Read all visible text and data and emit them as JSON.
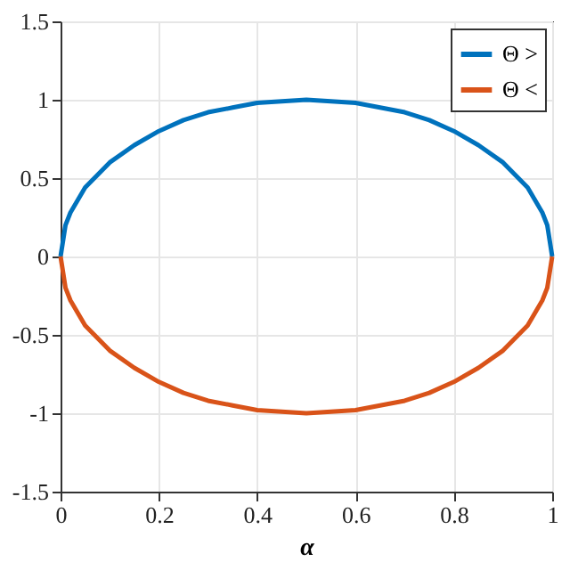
{
  "chart_data": {
    "type": "line",
    "xlabel": "α",
    "x": [
      0,
      0.01,
      0.02,
      0.05,
      0.1,
      0.15,
      0.2,
      0.25,
      0.3,
      0.35,
      0.4,
      0.45,
      0.5,
      0.55,
      0.6,
      0.65,
      0.7,
      0.75,
      0.8,
      0.85,
      0.9,
      0.95,
      0.98,
      0.99,
      1
    ],
    "series": [
      {
        "name": "Θ >",
        "color": "#0072bd",
        "values": [
          0,
          0.2,
          0.28,
          0.44,
          0.6,
          0.71,
          0.8,
          0.87,
          0.92,
          0.95,
          0.98,
          0.99,
          1,
          0.99,
          0.98,
          0.95,
          0.92,
          0.87,
          0.8,
          0.71,
          0.6,
          0.44,
          0.28,
          0.2,
          0
        ]
      },
      {
        "name": "Θ <",
        "color": "#d95319",
        "values": [
          0,
          -0.2,
          -0.28,
          -0.44,
          -0.6,
          -0.71,
          -0.8,
          -0.87,
          -0.92,
          -0.95,
          -0.98,
          -0.99,
          -1,
          -0.99,
          -0.98,
          -0.95,
          -0.92,
          -0.87,
          -0.8,
          -0.71,
          -0.6,
          -0.44,
          -0.28,
          -0.2,
          0
        ]
      }
    ],
    "xlim": [
      0,
      1
    ],
    "xticks": [
      0,
      0.2,
      0.4,
      0.6,
      0.8,
      1
    ],
    "ylim": [
      -1.5,
      1.5
    ],
    "yticks": [
      -1.5,
      -1,
      -0.5,
      0,
      0.5,
      1,
      1.5
    ],
    "grid": true,
    "legend": "top right",
    "marker": "none",
    "line_style": "solid"
  }
}
